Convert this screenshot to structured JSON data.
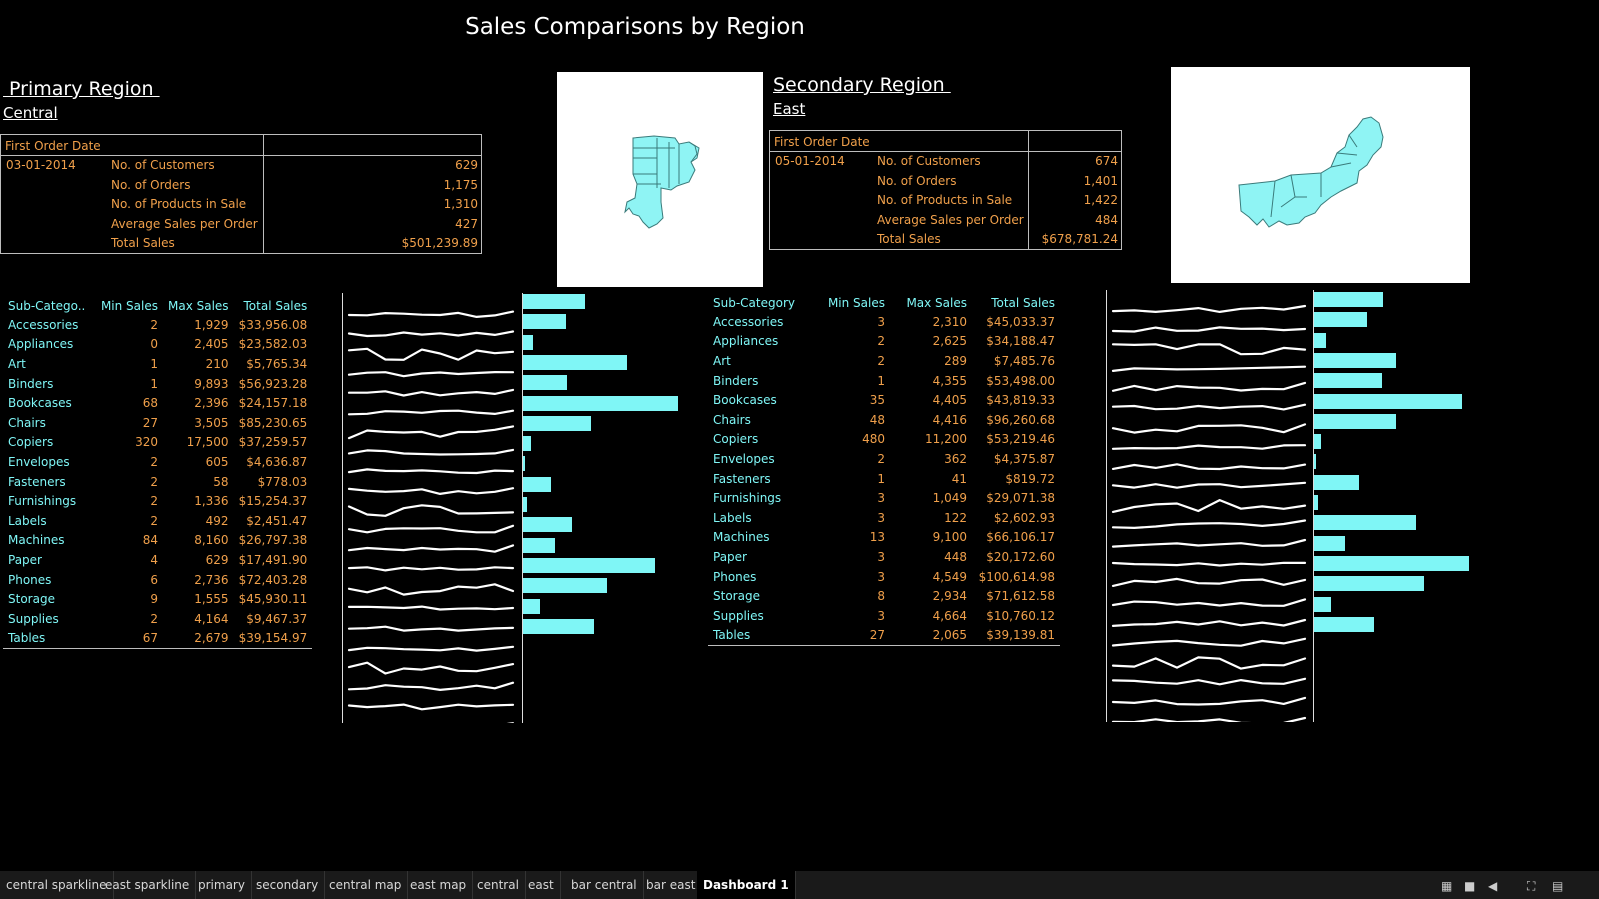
{
  "title": "Sales Comparisons by Region",
  "primary": {
    "heading": " Primary Region ",
    "name": "Central",
    "first_order_label": "First Order Date",
    "first_order_date": "03-01-2014",
    "metrics": [
      {
        "label": "No. of Customers",
        "value": "629"
      },
      {
        "label": "No. of Orders",
        "value": "1,175"
      },
      {
        "label": "No. of Products in Sale",
        "value": "1,310"
      },
      {
        "label": "Average Sales per Order",
        "value": "427"
      },
      {
        "label": "Total Sales",
        "value": "$501,239.89"
      }
    ],
    "table_headers": [
      "Sub-Catego..",
      "Min Sales",
      "Max Sales",
      "Total Sales"
    ],
    "rows": [
      [
        "Accessories",
        "2",
        "1,929",
        "$33,956.08"
      ],
      [
        "Appliances",
        "0",
        "2,405",
        "$23,582.03"
      ],
      [
        "Art",
        "1",
        "210",
        "$5,765.34"
      ],
      [
        "Binders",
        "1",
        "9,893",
        "$56,923.28"
      ],
      [
        "Bookcases",
        "68",
        "2,396",
        "$24,157.18"
      ],
      [
        "Chairs",
        "27",
        "3,505",
        "$85,230.65"
      ],
      [
        "Copiers",
        "320",
        "17,500",
        "$37,259.57"
      ],
      [
        "Envelopes",
        "2",
        "605",
        "$4,636.87"
      ],
      [
        "Fasteners",
        "2",
        "58",
        "$778.03"
      ],
      [
        "Furnishings",
        "2",
        "1,336",
        "$15,254.37"
      ],
      [
        "Labels",
        "2",
        "492",
        "$2,451.47"
      ],
      [
        "Machines",
        "84",
        "8,160",
        "$26,797.38"
      ],
      [
        "Paper",
        "4",
        "629",
        "$17,491.90"
      ],
      [
        "Phones",
        "6",
        "2,736",
        "$72,403.28"
      ],
      [
        "Storage",
        "9",
        "1,555",
        "$45,930.11"
      ],
      [
        "Supplies",
        "2",
        "4,164",
        "$9,467.37"
      ],
      [
        "Tables",
        "67",
        "2,679",
        "$39,154.97"
      ]
    ],
    "bar_values": [
      33956.08,
      23582.03,
      5765.34,
      56923.28,
      24157.18,
      85230.65,
      37259.57,
      4636.87,
      778.03,
      15254.37,
      2451.47,
      26797.38,
      17491.9,
      72403.28,
      45930.11,
      9467.37,
      39154.97
    ],
    "spark_count": 22
  },
  "secondary": {
    "heading": "Secondary Region ",
    "name": "East",
    "first_order_label": "First Order Date",
    "first_order_date": "05-01-2014",
    "metrics": [
      {
        "label": "No. of Customers",
        "value": "674"
      },
      {
        "label": "No. of Orders",
        "value": "1,401"
      },
      {
        "label": "No. of Products in Sale",
        "value": "1,422"
      },
      {
        "label": "Average Sales per Order",
        "value": "484"
      },
      {
        "label": "Total Sales",
        "value": "$678,781.24"
      }
    ],
    "table_headers": [
      "Sub-Category",
      "Min Sales",
      "Max Sales",
      "Total Sales"
    ],
    "rows": [
      [
        "Accessories",
        "3",
        "2,310",
        "$45,033.37"
      ],
      [
        "Appliances",
        "2",
        "2,625",
        "$34,188.47"
      ],
      [
        "Art",
        "2",
        "289",
        "$7,485.76"
      ],
      [
        "Binders",
        "1",
        "4,355",
        "$53,498.00"
      ],
      [
        "Bookcases",
        "35",
        "4,405",
        "$43,819.33"
      ],
      [
        "Chairs",
        "48",
        "4,416",
        "$96,260.68"
      ],
      [
        "Copiers",
        "480",
        "11,200",
        "$53,219.46"
      ],
      [
        "Envelopes",
        "2",
        "362",
        "$4,375.87"
      ],
      [
        "Fasteners",
        "1",
        "41",
        "$819.72"
      ],
      [
        "Furnishings",
        "3",
        "1,049",
        "$29,071.38"
      ],
      [
        "Labels",
        "3",
        "122",
        "$2,602.93"
      ],
      [
        "Machines",
        "13",
        "9,100",
        "$66,106.17"
      ],
      [
        "Paper",
        "3",
        "448",
        "$20,172.60"
      ],
      [
        "Phones",
        "3",
        "4,549",
        "$100,614.98"
      ],
      [
        "Storage",
        "8",
        "2,934",
        "$71,612.58"
      ],
      [
        "Supplies",
        "3",
        "4,664",
        "$10,760.12"
      ],
      [
        "Tables",
        "27",
        "2,065",
        "$39,139.81"
      ]
    ],
    "bar_values": [
      45033.37,
      34188.47,
      7485.76,
      53498.0,
      43819.33,
      96260.68,
      53219.46,
      4375.87,
      819.72,
      29071.38,
      2602.93,
      66106.17,
      20172.6,
      100614.98,
      71612.58,
      10760.12,
      39139.81
    ],
    "spark_count": 22
  },
  "tabs": [
    "central sparkline",
    "east sparkline",
    "primary",
    "secondary",
    "central map",
    "east map",
    "central",
    "east",
    "bar central",
    "bar east",
    "Dashboard 1"
  ],
  "active_tab": "Dashboard 1"
}
